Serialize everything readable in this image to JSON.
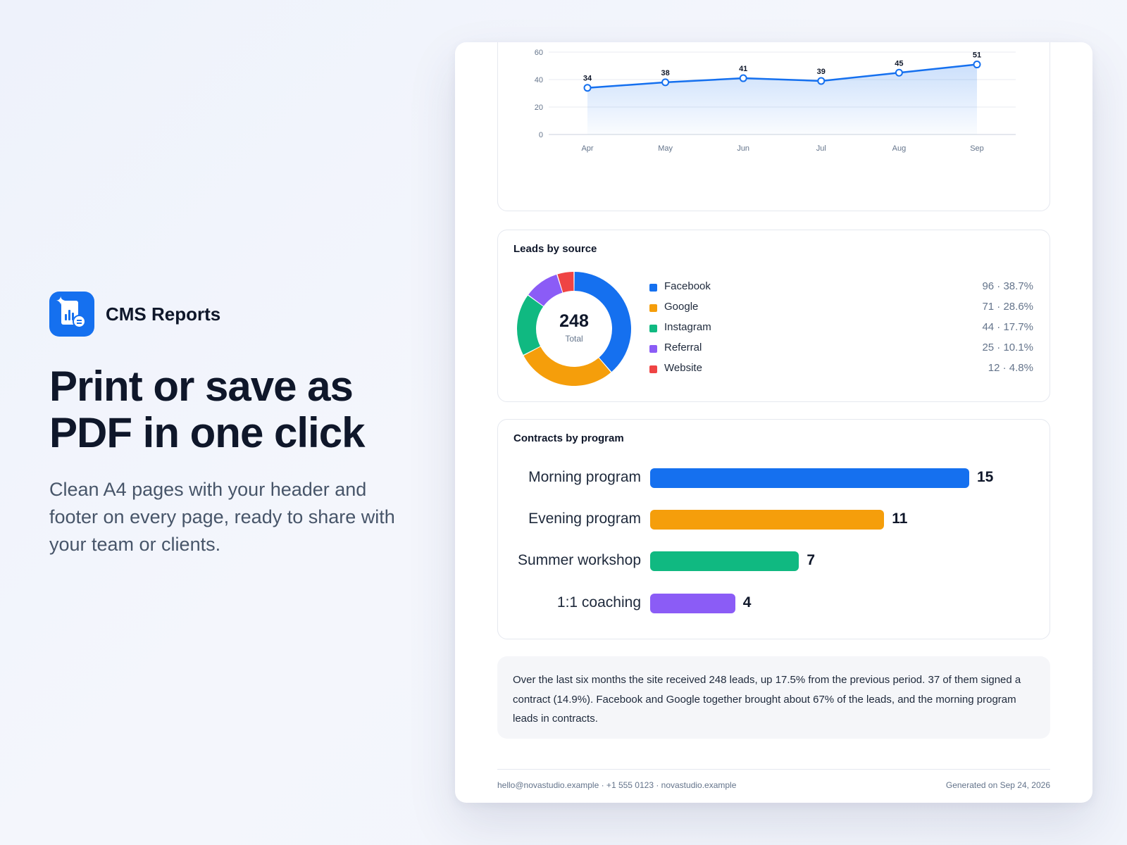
{
  "brand": {
    "name": "CMS Reports"
  },
  "hero": {
    "headline_line1": "Print or save as",
    "headline_line2": "PDF in one click",
    "subtext": "Clean A4 pages with your header and footer on every page, ready to share with your team or clients."
  },
  "colors": {
    "accent": "#1570ef",
    "facebook": "#1570ef",
    "google": "#f59e0b",
    "instagram": "#10b981",
    "referral": "#8b5cf6",
    "website": "#ef4444"
  },
  "line_chart": {
    "chart_data": {
      "type": "area",
      "categories": [
        "Apr",
        "May",
        "Jun",
        "Jul",
        "Aug",
        "Sep"
      ],
      "values": [
        34,
        38,
        41,
        39,
        45,
        51
      ],
      "ylim": [
        0,
        60
      ],
      "yticks": [
        0,
        20,
        40,
        60
      ],
      "grid": true,
      "color": "#1570ef"
    }
  },
  "leads_by_source": {
    "title": "Leads by source",
    "total": "248",
    "total_label": "Total",
    "chart_data": {
      "type": "pie",
      "labels": [
        "Facebook",
        "Google",
        "Instagram",
        "Referral",
        "Website"
      ],
      "values": [
        96,
        71,
        44,
        25,
        12
      ],
      "display": [
        "96 · 38.7%",
        "71 · 28.6%",
        "44 · 17.7%",
        "25 · 10.1%",
        "12 · 4.8%"
      ],
      "colors": [
        "#1570ef",
        "#f59e0b",
        "#10b981",
        "#8b5cf6",
        "#ef4444"
      ]
    }
  },
  "contracts_by_program": {
    "title": "Contracts by program",
    "chart_data": {
      "type": "bar",
      "categories": [
        "Morning program",
        "Evening program",
        "Summer workshop",
        "1:1 coaching"
      ],
      "values": [
        15,
        11,
        7,
        4
      ],
      "colors": [
        "#1570ef",
        "#f59e0b",
        "#10b981",
        "#8b5cf6"
      ],
      "xlim": [
        0,
        15
      ]
    }
  },
  "summary": "Over the last six months the site received 248 leads, up 17.5% from the previous period. 37 of them signed a contract (14.9%). Facebook and Google together brought about 67% of the leads, and the morning program leads in contracts.",
  "footer": {
    "contact": "hello@novastudio.example · +1 555 0123 · novastudio.example",
    "generated": "Generated on Sep 24, 2026"
  }
}
